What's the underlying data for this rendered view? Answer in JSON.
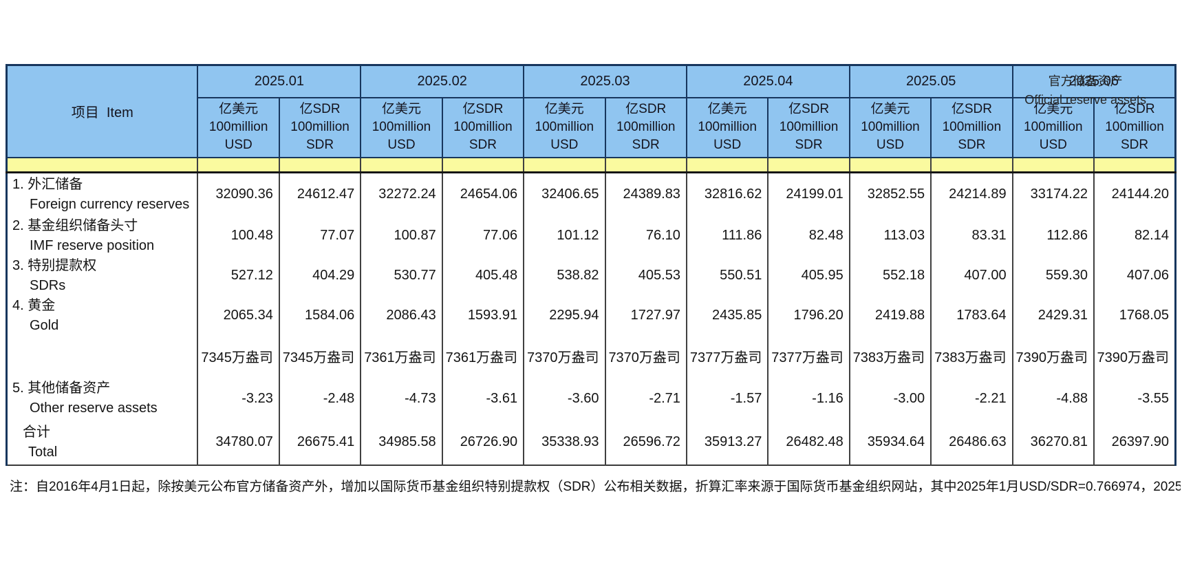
{
  "title": {
    "zh": "官方储备资产",
    "en": "Official reserve assets"
  },
  "table": {
    "item_header": "项目  Item",
    "months": [
      "2025.01",
      "2025.02",
      "2025.03",
      "2025.04",
      "2025.05",
      "2025.06"
    ],
    "unit_columns": [
      [
        "亿美元",
        "100million",
        "USD"
      ],
      [
        "亿SDR",
        "100million",
        "SDR"
      ]
    ],
    "rows": [
      {
        "label_zh": "1. 外汇储备",
        "label_en": "Foreign currency reserves",
        "values": [
          "32090.36",
          "24612.47",
          "32272.24",
          "24654.06",
          "32406.65",
          "24389.83",
          "32816.62",
          "24199.01",
          "32852.55",
          "24214.89",
          "33174.22",
          "24144.20"
        ]
      },
      {
        "label_zh": "2. 基金组织储备头寸",
        "label_en": "IMF reserve position",
        "values": [
          "100.48",
          "77.07",
          "100.87",
          "77.06",
          "101.12",
          "76.10",
          "111.86",
          "82.48",
          "113.03",
          "83.31",
          "112.86",
          "82.14"
        ]
      },
      {
        "label_zh": "3. 特别提款权",
        "label_en": "SDRs",
        "values": [
          "527.12",
          "404.29",
          "530.77",
          "405.48",
          "538.82",
          "405.53",
          "550.51",
          "405.95",
          "552.18",
          "407.00",
          "559.30",
          "407.06"
        ]
      },
      {
        "label_zh": "4. 黄金",
        "label_en": "Gold",
        "values": [
          "2065.34",
          "1584.06",
          "2086.43",
          "1593.91",
          "2295.94",
          "1727.97",
          "2435.85",
          "1796.20",
          "2419.88",
          "1783.64",
          "2429.31",
          "1768.05"
        ]
      },
      {
        "label_zh": "",
        "label_en": "",
        "values": [
          "7345万盎司",
          "7345万盎司",
          "7361万盎司",
          "7361万盎司",
          "7370万盎司",
          "7370万盎司",
          "7377万盎司",
          "7377万盎司",
          "7383万盎司",
          "7383万盎司",
          "7390万盎司",
          "7390万盎司"
        ]
      },
      {
        "label_zh": "5. 其他储备资产",
        "label_en": "Other reserve assets",
        "values": [
          "-3.23",
          "-2.48",
          "-4.73",
          "-3.61",
          "-3.60",
          "-2.71",
          "-1.57",
          "-1.16",
          "-3.00",
          "-2.21",
          "-4.88",
          "-3.55"
        ]
      },
      {
        "label_zh": "合计",
        "label_en": "Total",
        "values": [
          "34780.07",
          "26675.41",
          "34985.58",
          "26726.90",
          "35338.93",
          "26596.72",
          "35913.27",
          "26482.48",
          "35934.64",
          "26486.63",
          "36270.81",
          "26397.90"
        ]
      }
    ]
  },
  "note": "注：自2016年4月1日起，除按美元公布官方储备资产外，增加以国际货币基金组织特别提款权（SDR）公布相关数据，折算汇率来源于国际货币基金组织网站，其中2025年1月USD/SDR=0.766974，2025"
}
